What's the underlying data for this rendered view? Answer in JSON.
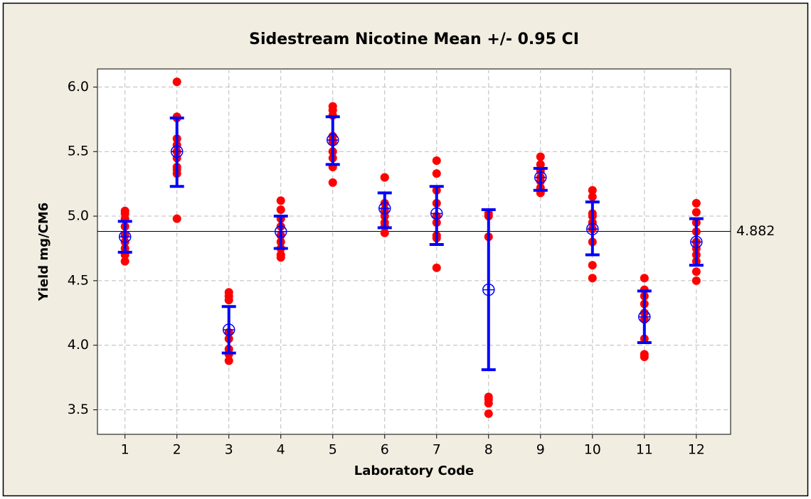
{
  "chart_data": {
    "type": "interval",
    "title": "Sidestream Nicotine Mean +/- 0.95 CI",
    "x_label": "Laboratory Code",
    "y_label": "Yield mg/CM6",
    "xlim": [
      0.47,
      12.66
    ],
    "xticks": [
      1,
      2,
      3,
      4,
      5,
      6,
      7,
      8,
      9,
      10,
      11,
      12
    ],
    "ylim": [
      3.31,
      6.14
    ],
    "yticks": [
      3.5,
      {
        "value": 4,
        "label": "4.0"
      },
      4.5,
      {
        "value": 5,
        "label": "5.0"
      },
      5.5,
      {
        "value": 6,
        "label": "6.0"
      }
    ],
    "grid": true,
    "point_color": "#ff0000",
    "interval_color": "#0000ff",
    "reference_line": 4.882,
    "groups": [
      {
        "x": 1,
        "points": [
          5.04,
          5.02,
          4.98,
          4.92,
          4.85,
          4.8,
          4.75,
          4.7,
          4.65
        ],
        "mean": 4.84,
        "ci": [
          4.72,
          4.96
        ]
      },
      {
        "x": 2,
        "points": [
          6.04,
          5.77,
          5.76,
          5.6,
          5.55,
          5.5,
          5.45,
          5.38,
          5.36,
          5.33,
          4.98
        ],
        "mean": 5.5,
        "ci": [
          5.23,
          5.76
        ]
      },
      {
        "x": 3,
        "points": [
          4.41,
          4.38,
          4.35,
          4.1,
          4.05,
          3.97,
          3.93,
          3.88
        ],
        "mean": 4.12,
        "ci": [
          3.94,
          4.3
        ]
      },
      {
        "x": 4,
        "points": [
          5.12,
          5.05,
          4.98,
          4.92,
          4.85,
          4.8,
          4.75,
          4.7,
          4.68
        ],
        "mean": 4.88,
        "ci": [
          4.75,
          5.0
        ]
      },
      {
        "x": 5,
        "points": [
          5.85,
          5.82,
          5.78,
          5.62,
          5.58,
          5.5,
          5.45,
          5.38,
          5.26
        ],
        "mean": 5.59,
        "ci": [
          5.4,
          5.77
        ]
      },
      {
        "x": 6,
        "points": [
          5.3,
          5.3,
          5.1,
          5.05,
          5.0,
          4.95,
          4.92,
          4.87
        ],
        "mean": 5.06,
        "ci": [
          4.91,
          5.18
        ]
      },
      {
        "x": 7,
        "points": [
          5.43,
          5.33,
          5.2,
          5.1,
          5.0,
          4.95,
          4.85,
          4.83,
          4.6
        ],
        "mean": 5.02,
        "ci": [
          4.78,
          5.23
        ]
      },
      {
        "x": 8,
        "points": [
          5.02,
          5.0,
          4.84,
          3.6,
          3.58,
          3.55,
          3.47
        ],
        "mean": 4.43,
        "ci": [
          3.81,
          5.05
        ]
      },
      {
        "x": 9,
        "points": [
          5.46,
          5.4,
          5.35,
          5.3,
          5.27,
          5.22,
          5.18
        ],
        "mean": 5.3,
        "ci": [
          5.2,
          5.37
        ]
      },
      {
        "x": 10,
        "points": [
          5.2,
          5.15,
          5.02,
          5.0,
          4.95,
          4.9,
          4.8,
          4.62,
          4.52
        ],
        "mean": 4.9,
        "ci": [
          4.7,
          5.11
        ]
      },
      {
        "x": 11,
        "points": [
          4.52,
          4.43,
          4.38,
          4.32,
          4.25,
          4.2,
          4.05,
          3.93,
          3.91
        ],
        "mean": 4.22,
        "ci": [
          4.02,
          4.42
        ]
      },
      {
        "x": 12,
        "points": [
          5.1,
          5.03,
          4.95,
          4.88,
          4.8,
          4.75,
          4.7,
          4.65,
          4.57,
          4.5
        ],
        "mean": 4.8,
        "ci": [
          4.62,
          4.98
        ]
      }
    ]
  }
}
